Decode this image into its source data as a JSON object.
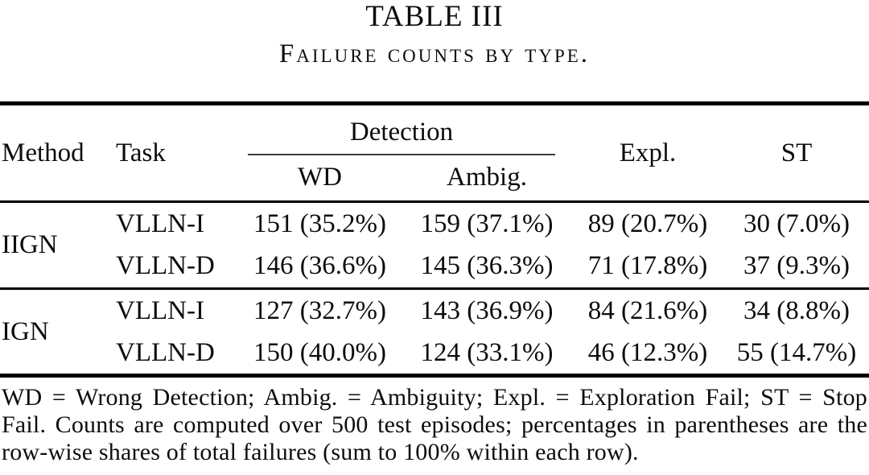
{
  "table": {
    "label": "TABLE III",
    "caption": "Failure counts by type.",
    "header": {
      "method": "Method",
      "task": "Task",
      "detection": "Detection",
      "wd": "WD",
      "ambig": "Ambig.",
      "expl": "Expl.",
      "st": "ST"
    },
    "groups": [
      {
        "method": "IIGN",
        "rows": [
          {
            "task": "VLLN-I",
            "wd": "151 (35.2%)",
            "ambig": "159 (37.1%)",
            "expl": "89 (20.7%)",
            "st": "30 (7.0%)"
          },
          {
            "task": "VLLN-D",
            "wd": "146 (36.6%)",
            "ambig": "145 (36.3%)",
            "expl": "71 (17.8%)",
            "st": "37 (9.3%)"
          }
        ]
      },
      {
        "method": "IGN",
        "rows": [
          {
            "task": "VLLN-I",
            "wd": "127 (32.7%)",
            "ambig": "143 (36.9%)",
            "expl": "84 (21.6%)",
            "st": "34 (8.8%)"
          },
          {
            "task": "VLLN-D",
            "wd": "150 (40.0%)",
            "ambig": "124 (33.1%)",
            "expl": "46 (12.3%)",
            "st": "55 (14.7%)"
          }
        ]
      }
    ],
    "footnote": "WD = Wrong Detection; Ambig. = Ambiguity; Expl. = Exploration Fail; ST = Stop Fail. Counts are computed over 500 test episodes; percentages in parentheses are the row-wise shares of total failures (sum to 100% within each row)."
  }
}
